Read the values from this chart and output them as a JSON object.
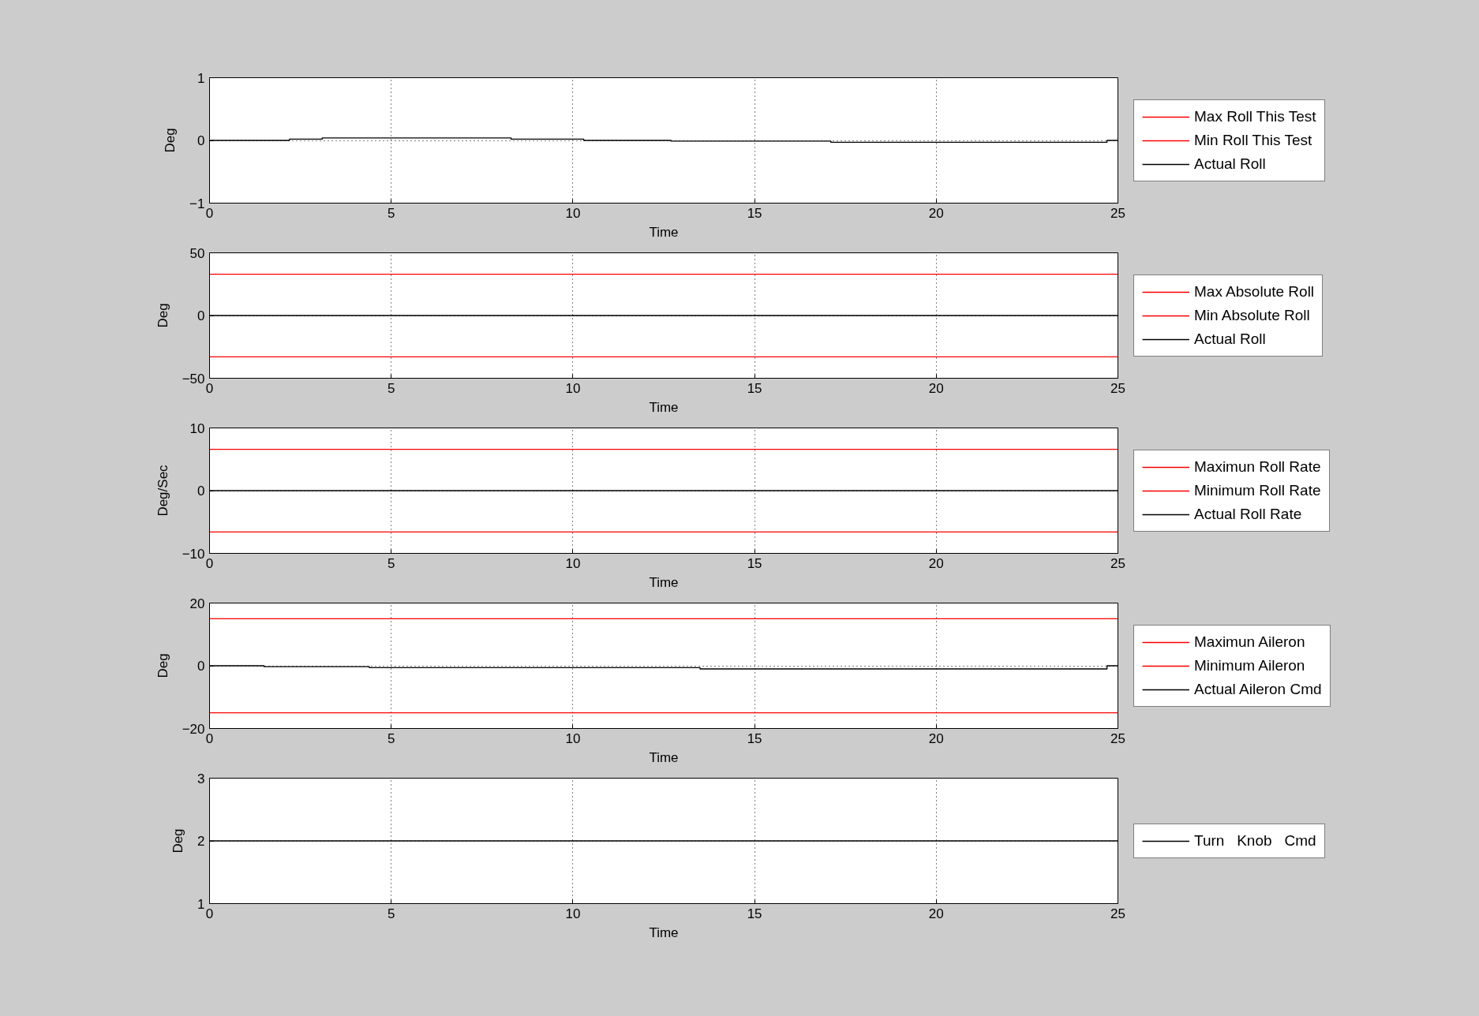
{
  "chart_data": [
    {
      "type": "line",
      "xlabel": "Time",
      "ylabel": "Deg",
      "xlim": [
        0,
        25
      ],
      "xticks": [
        0,
        5,
        10,
        15,
        20,
        25
      ],
      "ylim": [
        -1,
        1
      ],
      "yticks": [
        -1,
        0,
        1
      ],
      "grid": true,
      "legend": "right",
      "series": [
        {
          "name": "Max Roll This Test",
          "color": "#ff0000"
        },
        {
          "name": "Min Roll This Test",
          "color": "#ff0000"
        },
        {
          "name": "Actual Roll",
          "color": "#000000",
          "type": "step",
          "x": [
            0,
            2.2,
            3.1,
            8.3,
            10.3,
            12.7,
            17.1,
            24.7,
            25
          ],
          "values": [
            0,
            0.02,
            0.04,
            0.02,
            0,
            -0.01,
            -0.03,
            0,
            0
          ]
        }
      ]
    },
    {
      "type": "line",
      "xlabel": "Time",
      "ylabel": "Deg",
      "xlim": [
        0,
        25
      ],
      "xticks": [
        0,
        5,
        10,
        15,
        20,
        25
      ],
      "ylim": [
        -50,
        50
      ],
      "yticks": [
        -50,
        0,
        50
      ],
      "grid": true,
      "legend": "right",
      "series": [
        {
          "name": "Max Absolute Roll",
          "color": "#ff0000",
          "x": [
            0,
            25
          ],
          "values": [
            33,
            33
          ]
        },
        {
          "name": "Min Absolute Roll",
          "color": "#ff0000",
          "x": [
            0,
            25
          ],
          "values": [
            -33,
            -33
          ]
        },
        {
          "name": "Actual Roll",
          "color": "#000000",
          "x": [
            0,
            25
          ],
          "values": [
            0,
            0
          ]
        }
      ]
    },
    {
      "type": "line",
      "xlabel": "Time",
      "ylabel": "Deg/Sec",
      "xlim": [
        0,
        25
      ],
      "xticks": [
        0,
        5,
        10,
        15,
        20,
        25
      ],
      "ylim": [
        -10,
        10
      ],
      "yticks": [
        -10,
        0,
        10
      ],
      "grid": true,
      "legend": "right",
      "series": [
        {
          "name": "Maximun Roll Rate",
          "color": "#ff0000",
          "x": [
            0,
            25
          ],
          "values": [
            6.6,
            6.6
          ]
        },
        {
          "name": "Minimum Roll Rate",
          "color": "#ff0000",
          "x": [
            0,
            25
          ],
          "values": [
            -6.6,
            -6.6
          ]
        },
        {
          "name": "Actual Roll Rate",
          "color": "#000000",
          "x": [
            0,
            25
          ],
          "values": [
            0,
            0
          ]
        }
      ]
    },
    {
      "type": "line",
      "xlabel": "Time",
      "ylabel": "Deg",
      "xlim": [
        0,
        25
      ],
      "xticks": [
        0,
        5,
        10,
        15,
        20,
        25
      ],
      "ylim": [
        -20,
        20
      ],
      "yticks": [
        -20,
        0,
        20
      ],
      "grid": true,
      "legend": "right",
      "series": [
        {
          "name": "Maximun Aileron",
          "color": "#ff0000",
          "x": [
            0,
            25
          ],
          "values": [
            15,
            15
          ]
        },
        {
          "name": "Minimum Aileron",
          "color": "#ff0000",
          "x": [
            0,
            25
          ],
          "values": [
            -15,
            -15
          ]
        },
        {
          "name": "Actual Aileron Cmd",
          "color": "#000000",
          "type": "step",
          "x": [
            0,
            1.5,
            4.4,
            13.5,
            24.7,
            25
          ],
          "values": [
            0,
            -0.3,
            -0.6,
            -1,
            0,
            0
          ]
        }
      ]
    },
    {
      "type": "line",
      "xlabel": "Time",
      "ylabel": "Deg",
      "xlim": [
        0,
        25
      ],
      "xticks": [
        0,
        5,
        10,
        15,
        20,
        25
      ],
      "ylim": [
        1,
        3
      ],
      "yticks": [
        1,
        2,
        3
      ],
      "grid": true,
      "legend": "right",
      "series": [
        {
          "name": "Turn   Knob   Cmd",
          "color": "#000000",
          "x": [
            0,
            25
          ],
          "values": [
            2,
            2
          ]
        }
      ]
    }
  ]
}
